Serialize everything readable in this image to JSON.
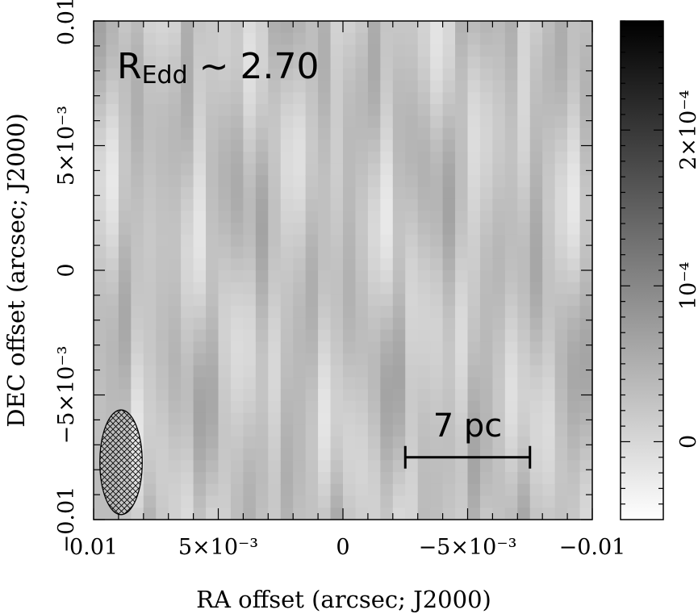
{
  "chart_data": {
    "type": "heatmap",
    "xlabel": "RA offset (arcsec; J2000)",
    "ylabel": "DEC offset (arcsec; J2000)",
    "xlim": [
      0.01,
      -0.01
    ],
    "ylim": [
      -0.01,
      0.01
    ],
    "x_ticks": [
      {
        "value": 0.01,
        "label": "0.01"
      },
      {
        "value": 0.005,
        "label": "5×10⁻³"
      },
      {
        "value": 0,
        "label": "0"
      },
      {
        "value": -0.005,
        "label": "−5×10⁻³"
      },
      {
        "value": -0.01,
        "label": "−0.01"
      }
    ],
    "y_ticks": [
      {
        "value": -0.01,
        "label": "−0.01"
      },
      {
        "value": -0.005,
        "label": "−5×10⁻³"
      },
      {
        "value": 0,
        "label": "0"
      },
      {
        "value": 0.005,
        "label": "5×10⁻³"
      },
      {
        "value": 0.01,
        "label": "0.01"
      }
    ],
    "colorbar": {
      "range": [
        -5e-05,
        0.00027
      ],
      "ticks": [
        {
          "value": 0,
          "label": "0"
        },
        {
          "value": 0.0001,
          "label": "10⁻⁴"
        },
        {
          "value": 0.0002,
          "label": "2×10⁻⁴"
        }
      ],
      "colormap": "white-to-black grayscale"
    },
    "annotation": {
      "main": "R",
      "subscript": "Edd",
      "rest": " ~ 2.70"
    },
    "scalebar": {
      "label": "7 pc",
      "from_ra": -0.0025,
      "to_ra": -0.0075,
      "dec": -0.0075
    },
    "beam": {
      "center_ra": 0.0089,
      "center_dec": -0.0077,
      "width_arcsec": 0.0017,
      "height_arcsec": 0.0042,
      "fill": "crosshatch"
    },
    "grid": false
  }
}
